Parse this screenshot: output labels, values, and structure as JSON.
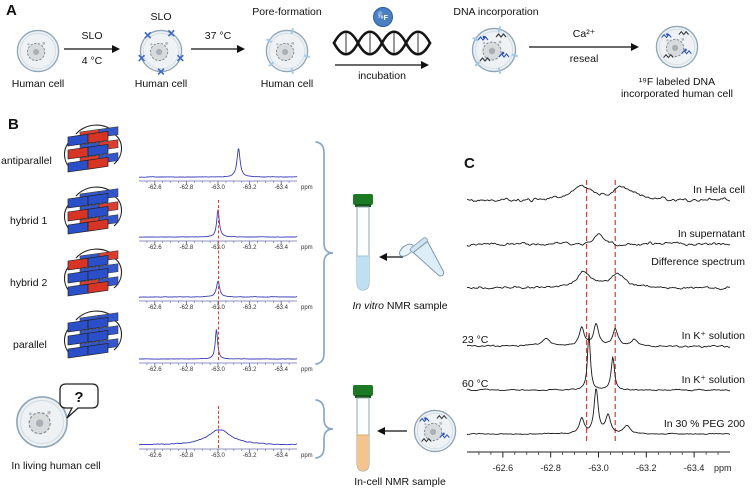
{
  "figure": {
    "panelA_label": "A",
    "panelB_label": "B",
    "panelC_label": "C"
  },
  "panelA": {
    "cell1_caption": "Human cell",
    "arrow1_top": "SLO",
    "arrow1_bottom": "4 °C",
    "cell2_title": "SLO",
    "cell2_caption": "Human cell",
    "arrow2_top": "37 °C",
    "cell3_title": "Pore-formation",
    "cell3_caption": "Human cell",
    "dna_title": "DNA incorporation",
    "incubation_label": "incubation",
    "f19_ball": "¹⁹F",
    "arrow3_top": "Ca²⁺",
    "arrow3_bottom": "reseal",
    "cell5_caption": "¹⁹F labeled DNA incorporated human cell"
  },
  "panelB": {
    "structures": [
      {
        "label": "antiparallel",
        "tetrads": [
          [
            "b",
            "r"
          ],
          [
            "r",
            "b"
          ],
          [
            "b",
            "r"
          ]
        ]
      },
      {
        "label": "hybrid 1",
        "tetrads": [
          [
            "b",
            "b"
          ],
          [
            "r",
            "b"
          ],
          [
            "b",
            "r"
          ]
        ]
      },
      {
        "label": "hybrid 2",
        "tetrads": [
          [
            "r",
            "b"
          ],
          [
            "b",
            "b"
          ],
          [
            "b",
            "r"
          ]
        ]
      },
      {
        "label": "parallel",
        "tetrads": [
          [
            "b",
            "b"
          ],
          [
            "b",
            "b"
          ],
          [
            "b",
            "b"
          ]
        ]
      }
    ],
    "living_cell_label": "In living human cell",
    "question_mark": "?",
    "invitro_label_italic": "In vitro",
    "invitro_label_rest": " NMR sample",
    "incell_label": "In-cell NMR sample",
    "colors": {
      "red": "#d83425",
      "blue": "#2b4fc8"
    }
  },
  "chart_data": {
    "type": "line",
    "xlabel_unit": "ppm",
    "axis_ticks_ppm": [
      -62.6,
      -62.8,
      -63.0,
      -63.2,
      -63.4
    ],
    "panelB": {
      "x_range": [
        -62.5,
        -63.5
      ],
      "guide_ppm": -63.0,
      "spectra": [
        {
          "id": "antiparallel",
          "peaks": [
            {
              "ppm": -63.13,
              "h": 0.92,
              "w": 0.012
            }
          ],
          "noise": 0.012,
          "seed": 3
        },
        {
          "id": "hybrid1",
          "peaks": [
            {
              "ppm": -63.0,
              "h": 0.88,
              "w": 0.01
            }
          ],
          "noise": 0.012,
          "seed": 5
        },
        {
          "id": "hybrid2",
          "peaks": [
            {
              "ppm": -63.0,
              "h": 0.52,
              "w": 0.012
            }
          ],
          "noise": 0.012,
          "seed": 7
        },
        {
          "id": "parallel",
          "peaks": [
            {
              "ppm": -62.99,
              "h": 0.95,
              "w": 0.009
            }
          ],
          "noise": 0.012,
          "seed": 9
        },
        {
          "id": "incell",
          "peaks": [
            {
              "ppm": -63.01,
              "h": 0.5,
              "w": 0.09
            }
          ],
          "noise": 0.02,
          "seed": 11
        }
      ]
    },
    "panelC": {
      "x_range": [
        -62.45,
        -63.55
      ],
      "guides_ppm": [
        -62.95,
        -63.07
      ],
      "traces": [
        {
          "label": "In Hela cell",
          "peaks": [
            {
              "ppm": -62.93,
              "h": 0.45,
              "w": 0.045
            },
            {
              "ppm": -63.1,
              "h": 0.4,
              "w": 0.05
            }
          ],
          "noise": 0.1,
          "seed": 21
        },
        {
          "label": "In supernatant",
          "peaks": [
            {
              "ppm": -63.0,
              "h": 0.32,
              "w": 0.02
            }
          ],
          "noise": 0.09,
          "seed": 22
        },
        {
          "label": "Difference spectrum",
          "peaks": [
            {
              "ppm": -62.94,
              "h": 0.5,
              "w": 0.035
            },
            {
              "ppm": -63.08,
              "h": 0.45,
              "w": 0.04
            }
          ],
          "noise": 0.07,
          "seed": 23
        },
        {
          "temp_label": "23 °C",
          "label": "In K⁺ solution",
          "peaks": [
            {
              "ppm": -62.78,
              "h": 0.25,
              "w": 0.02
            },
            {
              "ppm": -62.93,
              "h": 0.6,
              "w": 0.012
            },
            {
              "ppm": -62.99,
              "h": 0.7,
              "w": 0.012
            },
            {
              "ppm": -63.07,
              "h": 0.55,
              "w": 0.012
            },
            {
              "ppm": -63.15,
              "h": 0.2,
              "w": 0.015
            }
          ],
          "noise": 0.05,
          "seed": 24
        },
        {
          "temp_label": "60 °C",
          "label": "In K⁺ solution",
          "peaks": [
            {
              "ppm": -62.96,
              "h": 1.9,
              "w": 0.007
            },
            {
              "ppm": -63.06,
              "h": 1.1,
              "w": 0.008
            }
          ],
          "noise": 0.04,
          "seed": 25
        },
        {
          "label": "In 30 % PEG 200",
          "peaks": [
            {
              "ppm": -62.93,
              "h": 0.5,
              "w": 0.012
            },
            {
              "ppm": -62.99,
              "h": 1.5,
              "w": 0.01
            },
            {
              "ppm": -63.04,
              "h": 0.6,
              "w": 0.012
            },
            {
              "ppm": -63.12,
              "h": 0.25,
              "w": 0.015
            }
          ],
          "noise": 0.03,
          "seed": 26
        }
      ]
    }
  }
}
